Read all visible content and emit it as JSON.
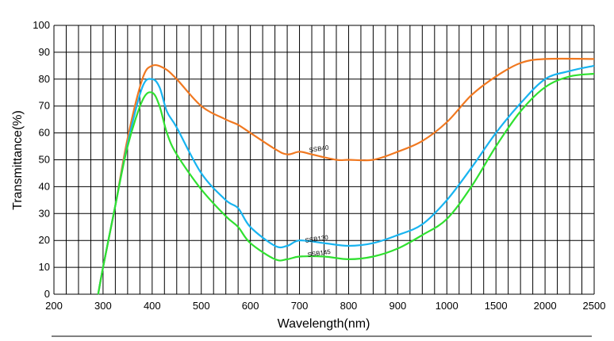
{
  "chart_data": {
    "type": "line",
    "xlabel": "Wavelength(nm)",
    "ylabel": "Transmittance(%)",
    "x_tick_labels": [
      "200",
      "300",
      "400",
      "500",
      "600",
      "700",
      "800",
      "900",
      "1000",
      "1500",
      "2000",
      "2500"
    ],
    "y_tick_labels": [
      "0",
      "10",
      "20",
      "30",
      "40",
      "50",
      "60",
      "70",
      "80",
      "90",
      "100"
    ],
    "ylim": [
      0,
      100
    ],
    "xlim": [
      200,
      2500
    ],
    "x_axis_note": "piecewise axis: 200-1000 in 100 nm steps, 1000-2500 in 500 nm steps, equal spacing per label",
    "grid": true,
    "legend": "none (series labelled inline)",
    "series": [
      {
        "name": "SSB40",
        "color": "#f07820",
        "points": [
          [
            290,
            0
          ],
          [
            300,
            10
          ],
          [
            325,
            33
          ],
          [
            350,
            58
          ],
          [
            380,
            80
          ],
          [
            400,
            85
          ],
          [
            425,
            84
          ],
          [
            450,
            80
          ],
          [
            500,
            70
          ],
          [
            550,
            65
          ],
          [
            575,
            63
          ],
          [
            600,
            60
          ],
          [
            650,
            54
          ],
          [
            675,
            52
          ],
          [
            700,
            53
          ],
          [
            725,
            52
          ],
          [
            775,
            50
          ],
          [
            800,
            50
          ],
          [
            850,
            50
          ],
          [
            900,
            53
          ],
          [
            950,
            57
          ],
          [
            1000,
            64
          ],
          [
            1250,
            74
          ],
          [
            1500,
            81
          ],
          [
            1750,
            86
          ],
          [
            2000,
            87.5
          ],
          [
            2500,
            87.5
          ]
        ]
      },
      {
        "name": "SSB130",
        "color": "#18b4f0",
        "points": [
          [
            290,
            0
          ],
          [
            300,
            10
          ],
          [
            325,
            33
          ],
          [
            350,
            56
          ],
          [
            380,
            77
          ],
          [
            400,
            80
          ],
          [
            415,
            77
          ],
          [
            430,
            68
          ],
          [
            450,
            62
          ],
          [
            500,
            45
          ],
          [
            550,
            35
          ],
          [
            575,
            32
          ],
          [
            600,
            25
          ],
          [
            650,
            18
          ],
          [
            675,
            18
          ],
          [
            700,
            20
          ],
          [
            750,
            19
          ],
          [
            800,
            18
          ],
          [
            850,
            19
          ],
          [
            900,
            22
          ],
          [
            950,
            26
          ],
          [
            1000,
            35
          ],
          [
            1250,
            47
          ],
          [
            1500,
            60
          ],
          [
            1750,
            71
          ],
          [
            2000,
            80
          ],
          [
            2250,
            83
          ],
          [
            2500,
            85
          ]
        ]
      },
      {
        "name": "SSB145",
        "color": "#30e030",
        "points": [
          [
            290,
            0
          ],
          [
            300,
            10
          ],
          [
            325,
            33
          ],
          [
            350,
            55
          ],
          [
            380,
            72
          ],
          [
            400,
            75
          ],
          [
            415,
            70
          ],
          [
            430,
            60
          ],
          [
            450,
            52
          ],
          [
            500,
            39
          ],
          [
            550,
            29
          ],
          [
            575,
            25
          ],
          [
            600,
            19
          ],
          [
            650,
            13
          ],
          [
            675,
            13
          ],
          [
            700,
            14
          ],
          [
            750,
            14
          ],
          [
            800,
            13
          ],
          [
            850,
            14
          ],
          [
            900,
            17
          ],
          [
            950,
            22
          ],
          [
            1000,
            28
          ],
          [
            1250,
            40
          ],
          [
            1500,
            55
          ],
          [
            1750,
            68
          ],
          [
            2000,
            77
          ],
          [
            2250,
            81
          ],
          [
            2500,
            82
          ]
        ]
      }
    ]
  }
}
